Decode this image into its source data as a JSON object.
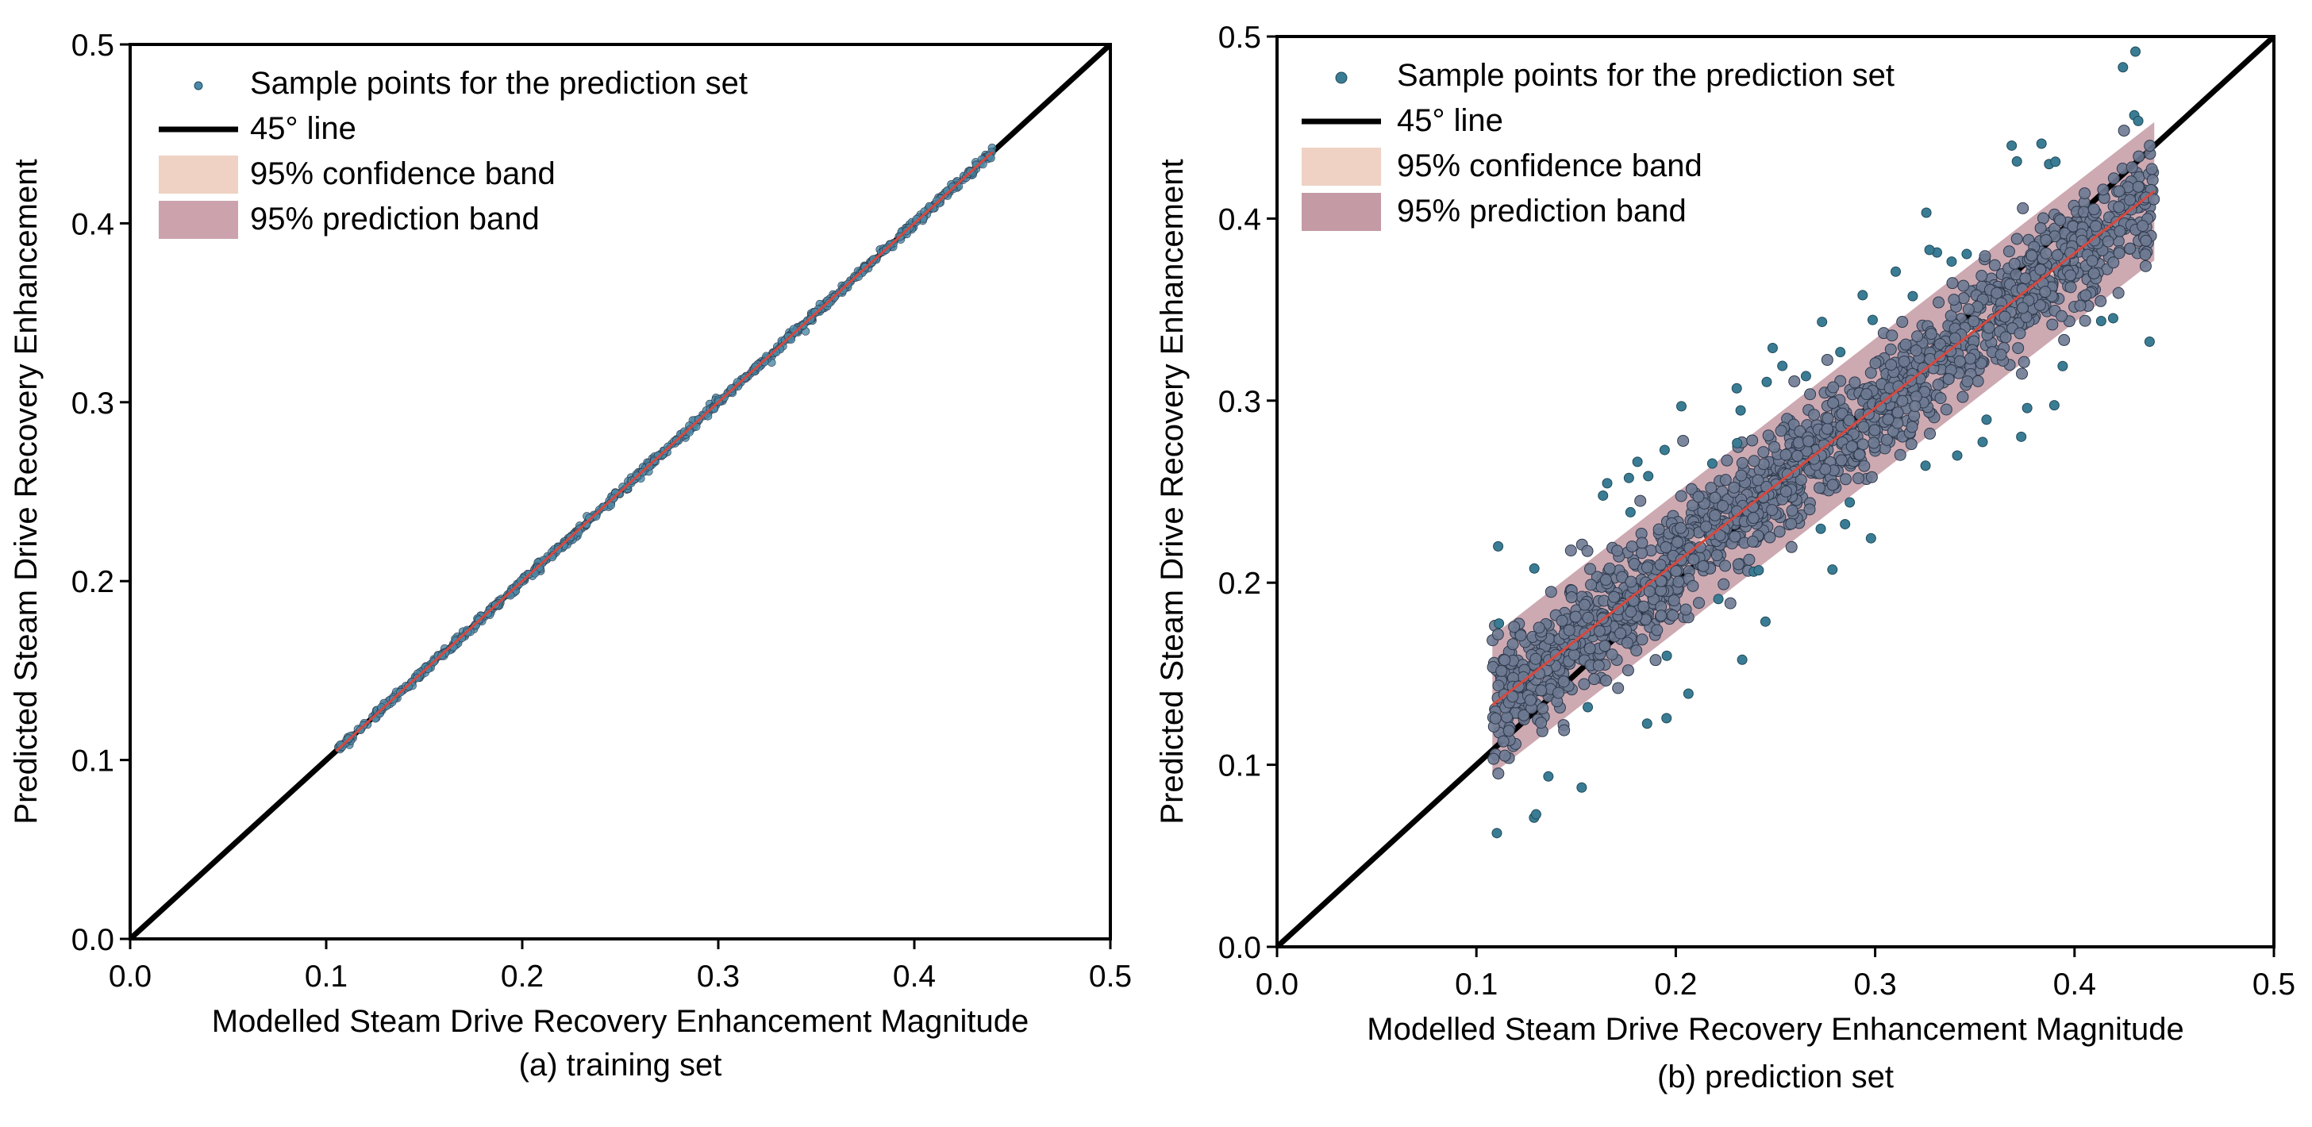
{
  "chart_data": [
    {
      "type": "scatter",
      "panel_id": "a",
      "caption": "(a) training set",
      "xlabel": "Modelled Steam Drive Recovery Enhancement Magnitude",
      "ylabel": "Predicted Steam Drive Recovery Enhancement",
      "xlim": [
        0.0,
        0.5
      ],
      "ylim": [
        0.0,
        0.5
      ],
      "xticks": [
        "0.0",
        "0.1",
        "0.2",
        "0.3",
        "0.4",
        "0.5"
      ],
      "yticks": [
        "0.0",
        "0.1",
        "0.2",
        "0.3",
        "0.4",
        "0.5"
      ],
      "legend": [
        "Sample points for the prediction set",
        "45° line",
        "95% confidence band",
        "95% prediction band"
      ],
      "legend_position": "top-left",
      "reference_line": {
        "label": "45° line",
        "from": [
          0.0,
          0.0
        ],
        "to": [
          0.5,
          0.5
        ]
      },
      "x_range": [
        0.105,
        0.44
      ],
      "fit": {
        "slope": 1.0,
        "intercept": 0.0,
        "x": [
          0.105,
          0.44
        ]
      },
      "prediction_band_halfwidth": 0.002,
      "confidence_band_halfwidth": 0.001,
      "noise_sd": 0.0012,
      "n_points": 700,
      "outlier_count": 0,
      "colors": {
        "points": "#4a8aa8",
        "fit": "#d9473d",
        "confidence": "#efd2c4",
        "prediction": "#cca3ad",
        "line45": "#000000"
      }
    },
    {
      "type": "scatter",
      "panel_id": "b",
      "caption": "(b) prediction set",
      "xlabel": "Modelled Steam Drive Recovery Enhancement Magnitude",
      "ylabel": "Predicted Steam Drive Recovery Enhancement",
      "xlim": [
        0.0,
        0.5
      ],
      "ylim": [
        0.0,
        0.5
      ],
      "xticks": [
        "0.0",
        "0.1",
        "0.2",
        "0.3",
        "0.4",
        "0.5"
      ],
      "yticks": [
        "0.0",
        "0.1",
        "0.2",
        "0.3",
        "0.4",
        "0.5"
      ],
      "legend": [
        "Sample points for the prediction set",
        "45° line",
        "95% confidence band",
        "95% prediction band"
      ],
      "legend_position": "top-left",
      "reference_line": {
        "label": "45° line",
        "from": [
          0.0,
          0.0
        ],
        "to": [
          0.5,
          0.5
        ]
      },
      "x_range": [
        0.108,
        0.44
      ],
      "fit": {
        "slope": 0.85,
        "intercept": 0.041,
        "x": [
          0.108,
          0.44
        ]
      },
      "prediction_band_halfwidth": 0.038,
      "confidence_band_halfwidth": 0.002,
      "noise_sd": 0.016,
      "n_points": 1600,
      "outlier_count": 70,
      "colors": {
        "points": "#6e7a92",
        "outliers": "#3a7c94",
        "fit": "#d9473d",
        "confidence": "#efd2c4",
        "prediction": "#c49aa5",
        "line45": "#000000"
      }
    }
  ]
}
